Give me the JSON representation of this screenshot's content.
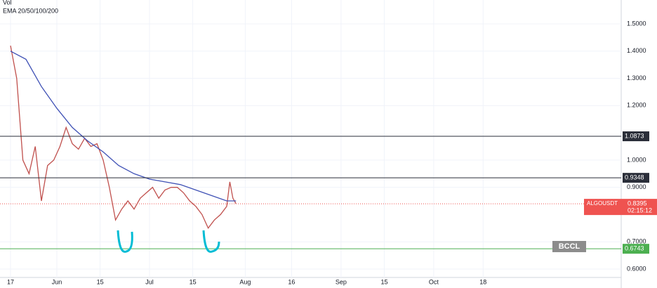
{
  "chart_data": {
    "type": "line",
    "legend_texts": [
      "Vol",
      "EMA 20/50/100/200"
    ],
    "annotation": "BCCL",
    "xlim": [
      -3.4,
      197.7
    ],
    "xticks": [
      {
        "value": 0,
        "label": "17"
      },
      {
        "value": 15,
        "label": "Jun"
      },
      {
        "value": 29,
        "label": "15"
      },
      {
        "value": 45,
        "label": "Jul"
      },
      {
        "value": 59,
        "label": "15"
      },
      {
        "value": 76,
        "label": "Aug"
      },
      {
        "value": 91,
        "label": "16"
      },
      {
        "value": 107,
        "label": "Sep"
      },
      {
        "value": 121,
        "label": "15"
      },
      {
        "value": 137,
        "label": "Oct"
      },
      {
        "value": 153,
        "label": "18"
      }
    ],
    "ylim": [
      0.569,
      1.5877
    ],
    "yticks": [
      {
        "value": 1.5,
        "label": "1.5000"
      },
      {
        "value": 1.4,
        "label": "1.4000"
      },
      {
        "value": 1.3,
        "label": "1.3000"
      },
      {
        "value": 1.2,
        "label": "1.2000"
      },
      {
        "value": 1.0,
        "label": "1.0000"
      },
      {
        "value": 0.9,
        "label": "0.9000"
      },
      {
        "value": 0.7,
        "label": "0.7000"
      },
      {
        "value": 0.6,
        "label": "0.6000"
      }
    ],
    "grid": true,
    "series": [
      {
        "name": "ALGOUSDT",
        "color": "#c0504d",
        "x": [
          0,
          2,
          4,
          6,
          8,
          10,
          12,
          14,
          16,
          18,
          20,
          22,
          24,
          26,
          28,
          30,
          32,
          34,
          36,
          38,
          40,
          42,
          44,
          46,
          48,
          50,
          52,
          54,
          56,
          58,
          60,
          62,
          64,
          66,
          68,
          70,
          71,
          72,
          73
        ],
        "values": [
          1.42,
          1.3,
          1.0,
          0.95,
          1.05,
          0.85,
          0.98,
          1.0,
          1.05,
          1.12,
          1.06,
          1.04,
          1.08,
          1.05,
          1.06,
          1.0,
          0.9,
          0.78,
          0.82,
          0.85,
          0.82,
          0.86,
          0.88,
          0.9,
          0.86,
          0.89,
          0.9,
          0.9,
          0.88,
          0.85,
          0.83,
          0.8,
          0.75,
          0.78,
          0.8,
          0.83,
          0.92,
          0.86,
          0.84
        ]
      },
      {
        "name": "EMA 200",
        "color": "#3f51b5",
        "x": [
          0,
          5,
          10,
          15,
          20,
          25,
          30,
          35,
          40,
          45,
          50,
          55,
          60,
          65,
          70,
          73
        ],
        "values": [
          1.4,
          1.37,
          1.27,
          1.19,
          1.12,
          1.07,
          1.03,
          0.98,
          0.95,
          0.93,
          0.92,
          0.91,
          0.89,
          0.87,
          0.85,
          0.85
        ]
      }
    ],
    "levels": [
      {
        "value": 1.0873,
        "color": "#2a2e39"
      },
      {
        "value": 0.9348,
        "color": "#2a2e39"
      },
      {
        "value": 0.6743,
        "color": "#4caf50"
      }
    ],
    "last_price": {
      "symbol": "ALGOUSDT",
      "value": 0.8395,
      "countdown": "02:15:12",
      "color": "#ef5350"
    }
  }
}
